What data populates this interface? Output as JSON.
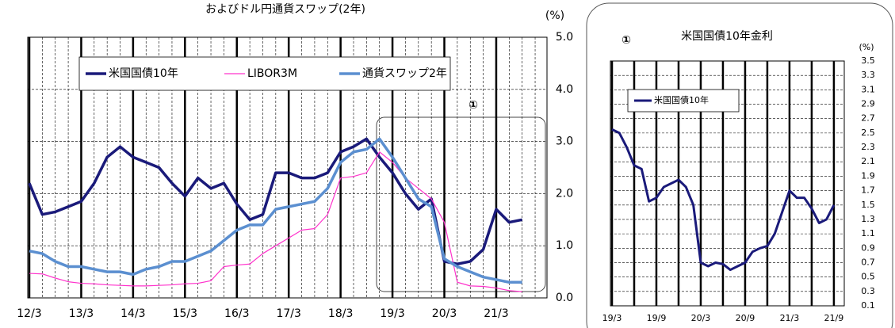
{
  "chart_data": [
    {
      "type": "line",
      "title": "およびドル円通貨スワップ(2年)",
      "unit": "(%)",
      "annotation": "①",
      "categories": [
        "12/3",
        null,
        null,
        null,
        "13/3",
        null,
        null,
        null,
        "14/3",
        null,
        null,
        null,
        "15/3",
        null,
        null,
        null,
        "16/3",
        null,
        null,
        null,
        "17/3",
        null,
        null,
        null,
        "18/3",
        null,
        null,
        null,
        "19/3",
        null,
        null,
        null,
        "20/3",
        null,
        null,
        null,
        "21/3",
        null,
        null
      ],
      "series": [
        {
          "name": "米国国債10年",
          "color": "#1a1a7a",
          "values": [
            2.2,
            1.6,
            1.65,
            1.75,
            1.85,
            2.2,
            2.7,
            2.9,
            2.7,
            2.6,
            2.5,
            2.2,
            1.95,
            2.3,
            2.1,
            2.2,
            1.8,
            1.5,
            1.6,
            2.4,
            2.4,
            2.3,
            2.3,
            2.4,
            2.8,
            2.9,
            3.05,
            2.7,
            2.4,
            2.0,
            1.7,
            1.9,
            0.7,
            0.65,
            0.7,
            0.93,
            1.7,
            1.45,
            1.5
          ]
        },
        {
          "name": "LIBOR3M",
          "color": "#ff33cc",
          "values": [
            0.47,
            0.46,
            0.38,
            0.31,
            0.28,
            0.27,
            0.25,
            0.24,
            0.23,
            0.23,
            0.24,
            0.25,
            0.27,
            0.28,
            0.33,
            0.6,
            0.63,
            0.65,
            0.85,
            1.0,
            1.15,
            1.3,
            1.33,
            1.6,
            2.3,
            2.33,
            2.4,
            2.8,
            2.6,
            2.3,
            2.1,
            1.9,
            1.45,
            0.3,
            0.23,
            0.22,
            0.19,
            0.14,
            0.12
          ]
        },
        {
          "name": "通貨スワップ2年",
          "color": "#5b8fd0",
          "values": [
            0.9,
            0.85,
            0.7,
            0.6,
            0.6,
            0.55,
            0.5,
            0.5,
            0.45,
            0.55,
            0.6,
            0.7,
            0.7,
            0.8,
            0.9,
            1.1,
            1.3,
            1.4,
            1.4,
            1.7,
            1.75,
            1.8,
            1.85,
            2.1,
            2.6,
            2.8,
            2.85,
            3.05,
            2.7,
            2.3,
            1.9,
            1.75,
            0.75,
            0.6,
            0.5,
            0.4,
            0.35,
            0.3,
            0.3
          ]
        }
      ],
      "ylim": [
        0,
        5
      ],
      "yticks": [
        {
          "value": 0,
          "label": "0.0"
        },
        {
          "value": 1,
          "label": "1.0"
        },
        {
          "value": 2,
          "label": "2.0"
        },
        {
          "value": 3,
          "label": "3.0"
        },
        {
          "value": 4,
          "label": "4.0"
        },
        {
          "value": 5,
          "label": "5.0"
        }
      ],
      "grid": true,
      "legend": "top"
    },
    {
      "type": "line",
      "title": "米国国債10年金利",
      "unit": "(%)",
      "annotation": "①",
      "categories": [
        "19/3",
        null,
        null,
        null,
        null,
        null,
        "19/9",
        null,
        null,
        null,
        null,
        null,
        "20/3",
        null,
        null,
        null,
        null,
        null,
        "20/9",
        null,
        null,
        null,
        null,
        null,
        "21/3",
        null,
        null,
        null,
        null,
        null,
        "21/9"
      ],
      "series": [
        {
          "name": "米国国債10年",
          "color": "#1a1a7a",
          "values": [
            2.55,
            2.5,
            2.3,
            2.05,
            2.0,
            1.55,
            1.6,
            1.75,
            1.8,
            1.85,
            1.75,
            1.5,
            0.7,
            0.65,
            0.7,
            0.68,
            0.6,
            0.65,
            0.7,
            0.85,
            0.9,
            0.93,
            1.1,
            1.4,
            1.7,
            1.6,
            1.6,
            1.45,
            1.25,
            1.3,
            1.5
          ]
        }
      ],
      "ylim": [
        0.1,
        3.5
      ],
      "yticks": [
        0.1,
        0.3,
        0.5,
        0.7,
        0.9,
        1.1,
        1.3,
        1.5,
        1.7,
        1.9,
        2.1,
        2.3,
        2.5,
        2.7,
        2.9,
        3.1,
        3.3,
        3.5
      ],
      "grid": true,
      "legend": "top-left"
    }
  ]
}
